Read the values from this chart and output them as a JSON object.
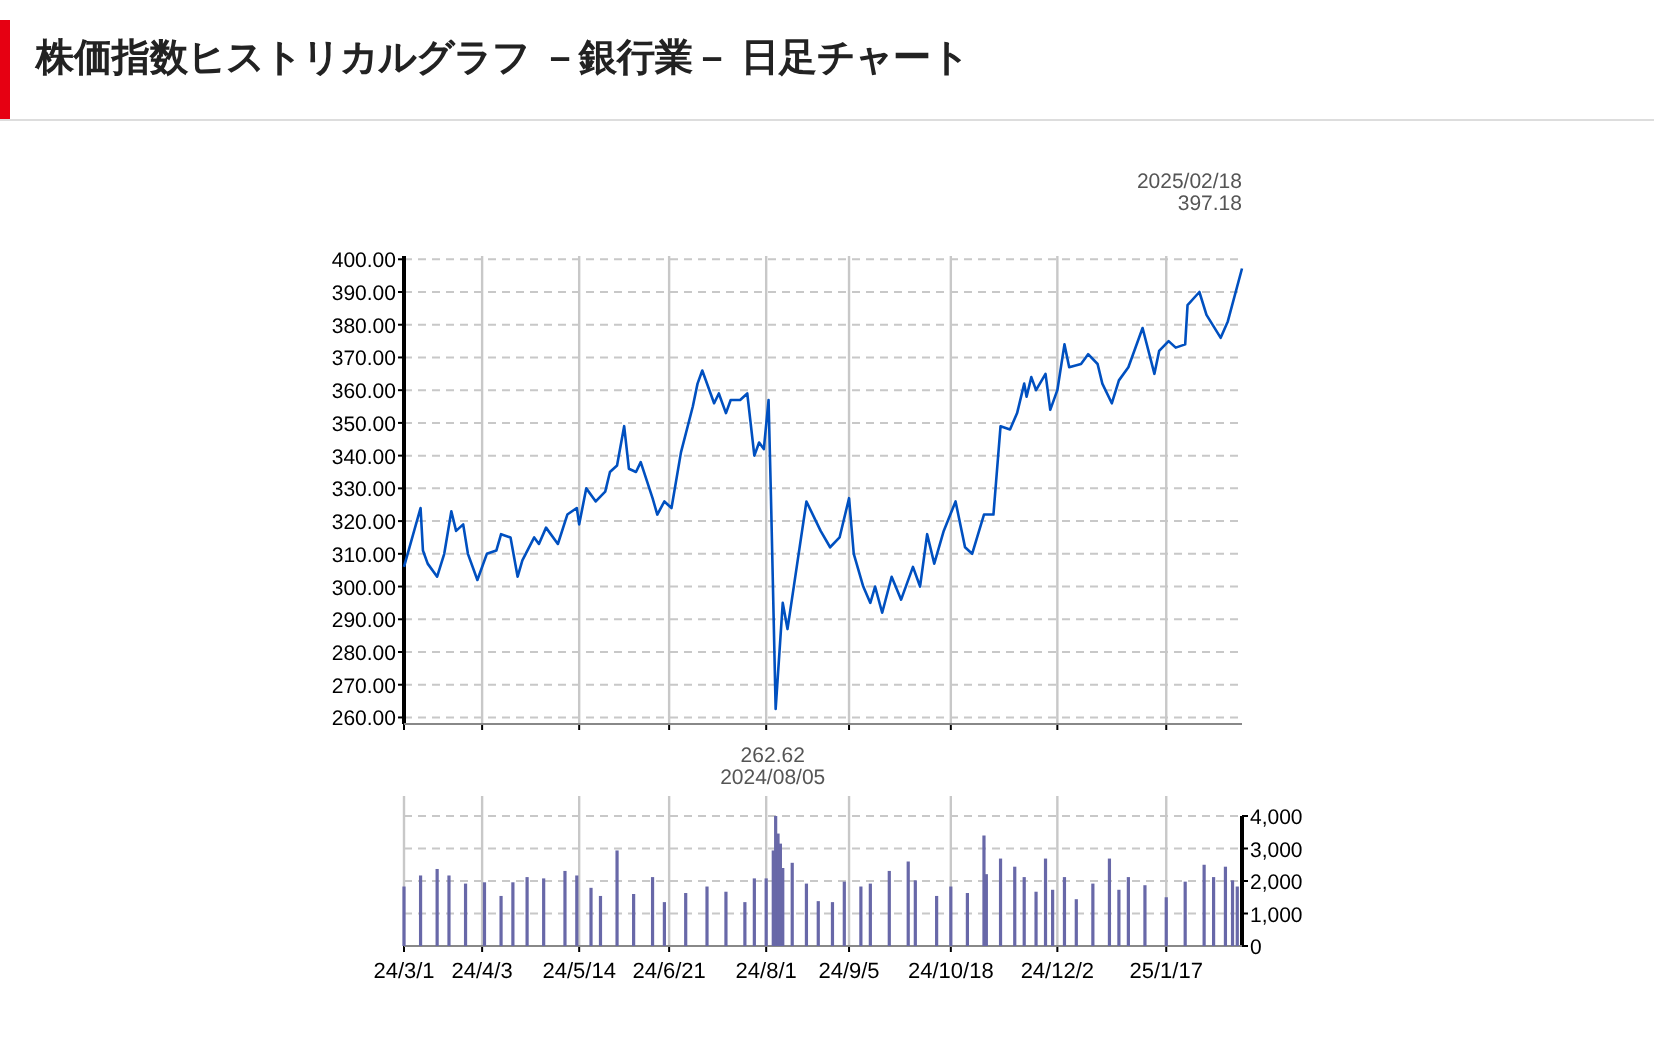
{
  "chart_data": [
    {
      "type": "line",
      "title": "株価指数ヒストリカルグラフ －銀行業－ 日足チャート",
      "tick_labels": "y",
      "grid": true,
      "marker": "none",
      "line_style": "solid",
      "xlim": [
        "2024-03-01",
        "2025-02-18"
      ],
      "xticks": [
        {
          "value": "2024-03-01",
          "label": null
        },
        {
          "value": "2024-04-03",
          "label": null
        },
        {
          "value": "2024-05-14",
          "label": null
        },
        {
          "value": "2024-06-21",
          "label": null
        },
        {
          "value": "2024-08-01",
          "label": null
        },
        {
          "value": "2024-09-05",
          "label": null
        },
        {
          "value": "2024-10-18",
          "label": null
        },
        {
          "value": "2024-12-02",
          "label": null
        },
        {
          "value": "2025-01-17",
          "label": null
        }
      ],
      "ylim": [
        258,
        401
      ],
      "yticks": [
        {
          "value": 260,
          "label": "260.00"
        },
        {
          "value": 270,
          "label": "270.00"
        },
        {
          "value": 280,
          "label": "280.00"
        },
        {
          "value": 290,
          "label": "290.00"
        },
        {
          "value": 300,
          "label": "300.00"
        },
        {
          "value": 310,
          "label": "310.00"
        },
        {
          "value": 320,
          "label": "320.00"
        },
        {
          "value": 330,
          "label": "330.00"
        },
        {
          "value": 340,
          "label": "340.00"
        },
        {
          "value": 350,
          "label": "350.00"
        },
        {
          "value": 360,
          "label": "360.00"
        },
        {
          "value": 370,
          "label": "370.00"
        },
        {
          "value": 380,
          "label": "380.00"
        },
        {
          "value": 390,
          "label": "390.00"
        },
        {
          "value": 400,
          "label": "400.00"
        }
      ],
      "annotations": [
        "2025/02/18",
        "397.18",
        "262.62",
        "2024/08/05"
      ],
      "series": [
        {
          "color": "#0050c0",
          "x": [
            "2024-03-01",
            "2024-03-08",
            "2024-03-09",
            "2024-03-11",
            "2024-03-15",
            "2024-03-18",
            "2024-03-21",
            "2024-03-23",
            "2024-03-26",
            "2024-03-28",
            "2024-04-01",
            "2024-04-05",
            "2024-04-09",
            "2024-04-11",
            "2024-04-15",
            "2024-04-18",
            "2024-04-20",
            "2024-04-25",
            "2024-04-27",
            "2024-04-30",
            "2024-05-05",
            "2024-05-09",
            "2024-05-13",
            "2024-05-14",
            "2024-05-17",
            "2024-05-21",
            "2024-05-25",
            "2024-05-27",
            "2024-05-30",
            "2024-06-02",
            "2024-06-04",
            "2024-06-07",
            "2024-06-09",
            "2024-06-14",
            "2024-06-16",
            "2024-06-19",
            "2024-06-22",
            "2024-06-26",
            "2024-07-01",
            "2024-07-03",
            "2024-07-05",
            "2024-07-10",
            "2024-07-12",
            "2024-07-15",
            "2024-07-17",
            "2024-07-21",
            "2024-07-24",
            "2024-07-27",
            "2024-07-29",
            "2024-07-31",
            "2024-08-02",
            "2024-08-03",
            "2024-08-05",
            "2024-08-08",
            "2024-08-10",
            "2024-08-18",
            "2024-08-24",
            "2024-08-28",
            "2024-09-01",
            "2024-09-05",
            "2024-09-07",
            "2024-09-11",
            "2024-09-14",
            "2024-09-16",
            "2024-09-19",
            "2024-09-23",
            "2024-09-27",
            "2024-10-02",
            "2024-10-05",
            "2024-10-08",
            "2024-10-11",
            "2024-10-15",
            "2024-10-20",
            "2024-10-24",
            "2024-10-27",
            "2024-11-01",
            "2024-11-05",
            "2024-11-08",
            "2024-11-12",
            "2024-11-15",
            "2024-11-18",
            "2024-11-19",
            "2024-11-21",
            "2024-11-23",
            "2024-11-27",
            "2024-11-29",
            "2024-12-02",
            "2024-12-05",
            "2024-12-07",
            "2024-12-12",
            "2024-12-15",
            "2024-12-19",
            "2024-12-21",
            "2024-12-25",
            "2024-12-28",
            "2025-01-01",
            "2025-01-07",
            "2025-01-12",
            "2025-01-14",
            "2025-01-18",
            "2025-01-21",
            "2025-01-25",
            "2025-01-26",
            "2025-01-31",
            "2025-02-03",
            "2025-02-09",
            "2025-02-12",
            "2025-02-18"
          ],
          "values": [
            306,
            324,
            311,
            307,
            303,
            310,
            323,
            317,
            319,
            310,
            302,
            310,
            311,
            316,
            315,
            303,
            308,
            315,
            313,
            318,
            313,
            322,
            324,
            319,
            330,
            326,
            329,
            335,
            337,
            349,
            336,
            335,
            338,
            327,
            322,
            326,
            324,
            341,
            355,
            362,
            366,
            356,
            359,
            353,
            357,
            357,
            359,
            340,
            344,
            342,
            357,
            328,
            262.62,
            295,
            287,
            326,
            317,
            312,
            315,
            327,
            310,
            300,
            295,
            300,
            292,
            303,
            296,
            306,
            300,
            316,
            307,
            317,
            326,
            312,
            310,
            322,
            322,
            349,
            348,
            353,
            362,
            358,
            364,
            360,
            365,
            354,
            360,
            374,
            367,
            368,
            371,
            368,
            362,
            356,
            363,
            367,
            379,
            365,
            372,
            375,
            373,
            374,
            386,
            390,
            383,
            376,
            381,
            397.18
          ]
        }
      ]
    },
    {
      "type": "bar",
      "grid": true,
      "xlim": [
        "2024-03-01",
        "2025-02-18"
      ],
      "xticks": [
        {
          "value": "2024-03-01",
          "label": "24/3/1"
        },
        {
          "value": "2024-04-03",
          "label": "24/4/3"
        },
        {
          "value": "2024-05-14",
          "label": "24/5/14"
        },
        {
          "value": "2024-06-21",
          "label": "24/6/21"
        },
        {
          "value": "2024-08-01",
          "label": "24/8/1"
        },
        {
          "value": "2024-09-05",
          "label": "24/9/5"
        },
        {
          "value": "2024-10-18",
          "label": "24/10/18"
        },
        {
          "value": "2024-12-02",
          "label": "24/12/2"
        },
        {
          "value": "2025-01-17",
          "label": "25/1/17"
        }
      ],
      "ylim": [
        0,
        4000
      ],
      "yticks": [
        0,
        {
          "value": 1000,
          "label": "1,000"
        },
        {
          "value": 2000,
          "label": "2,000"
        },
        {
          "value": 3000,
          "label": "3,000"
        },
        {
          "value": 4000,
          "label": "4,000"
        }
      ],
      "series": [
        {
          "color": "#6868a8",
          "x": [
            "2024-03-01",
            "2024-03-08",
            "2024-03-15",
            "2024-03-20",
            "2024-03-27",
            "2024-04-04",
            "2024-04-11",
            "2024-04-16",
            "2024-04-22",
            "2024-04-29",
            "2024-05-08",
            "2024-05-13",
            "2024-05-19",
            "2024-05-23",
            "2024-05-30",
            "2024-06-06",
            "2024-06-14",
            "2024-06-19",
            "2024-06-28",
            "2024-07-07",
            "2024-07-15",
            "2024-07-23",
            "2024-07-27",
            "2024-08-01",
            "2024-08-04",
            "2024-08-05",
            "2024-08-06",
            "2024-08-07",
            "2024-08-08",
            "2024-08-12",
            "2024-08-18",
            "2024-08-23",
            "2024-08-29",
            "2024-09-03",
            "2024-09-10",
            "2024-09-14",
            "2024-09-22",
            "2024-09-30",
            "2024-10-03",
            "2024-10-12",
            "2024-10-18",
            "2024-10-25",
            "2024-11-01",
            "2024-11-02",
            "2024-11-08",
            "2024-11-14",
            "2024-11-18",
            "2024-11-23",
            "2024-11-27",
            "2024-11-30",
            "2024-12-05",
            "2024-12-10",
            "2024-12-17",
            "2024-12-24",
            "2024-12-28",
            "2025-01-01",
            "2025-01-08",
            "2025-01-17",
            "2025-01-25",
            "2025-02-02",
            "2025-02-06",
            "2025-02-11",
            "2025-02-14",
            "2025-02-16"
          ],
          "values": [
            1830,
            2170,
            2370,
            2170,
            1920,
            1960,
            1540,
            1960,
            2120,
            2080,
            2310,
            2170,
            1790,
            1540,
            2940,
            1600,
            2120,
            1350,
            1630,
            1830,
            1670,
            1350,
            2080,
            2080,
            2940,
            4000,
            3460,
            3150,
            2400,
            2560,
            1920,
            1380,
            1350,
            1980,
            1830,
            1920,
            2310,
            2600,
            2020,
            1540,
            1830,
            1630,
            3400,
            2210,
            2690,
            2440,
            2120,
            1670,
            2690,
            1730,
            2120,
            1440,
            1920,
            2690,
            1730,
            2120,
            1870,
            1500,
            1980,
            2500,
            2120,
            2440,
            2020,
            1830
          ]
        }
      ]
    }
  ]
}
